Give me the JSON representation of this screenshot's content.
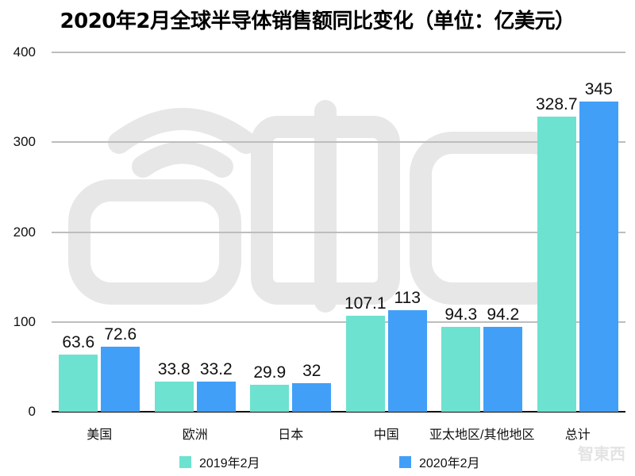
{
  "chart_data": {
    "type": "bar",
    "title": "2020年2月全球半导体销售额同比变化（单位：亿美元）",
    "xlabel": "",
    "ylabel": "",
    "ylim": [
      0,
      400
    ],
    "yticks": [
      0,
      100,
      200,
      300,
      400
    ],
    "grid": true,
    "legend_position": "bottom",
    "categories": [
      "美国",
      "欧洲",
      "日本",
      "中国",
      "亚太地区/其他地区",
      "总计"
    ],
    "series": [
      {
        "name": "2019年2月",
        "color": "#6de2d0",
        "values": [
          63.6,
          33.8,
          29.9,
          107.1,
          94.3,
          328.7
        ],
        "labels": [
          "63.6",
          "33.8",
          "29.9",
          "107.1",
          "94.3",
          "328.7"
        ]
      },
      {
        "name": "2020年2月",
        "color": "#429ff7",
        "values": [
          72.6,
          33.2,
          32,
          113,
          94.2,
          345
        ],
        "labels": [
          "72.6",
          "33.2",
          "32",
          "113",
          "94.2",
          "345"
        ]
      }
    ]
  },
  "yticks_text": [
    "0",
    "100",
    "200",
    "300",
    "400"
  ],
  "watermark_text": "智東西",
  "corner_watermark": "智東西"
}
